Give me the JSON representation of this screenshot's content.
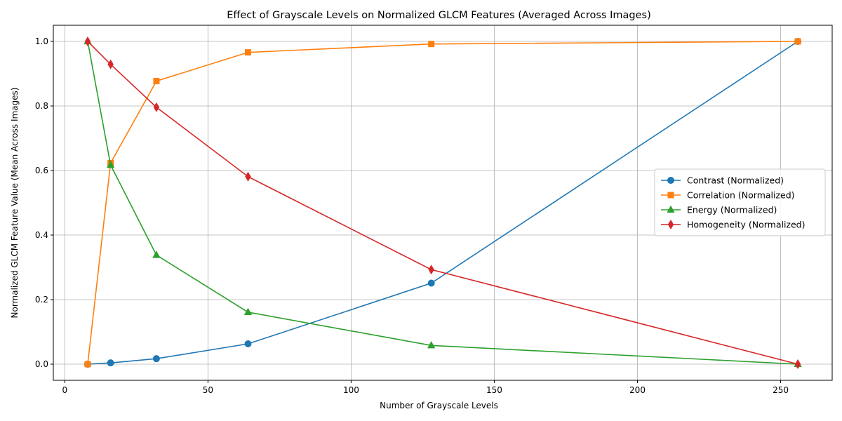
{
  "chart_data": {
    "type": "line",
    "title": "Effect of Grayscale Levels on Normalized GLCM Features (Averaged Across Images)",
    "xlabel": "Number of Grayscale Levels",
    "ylabel": "Normalized GLCM Feature Value (Mean Across Images)",
    "x": [
      8,
      16,
      32,
      64,
      128,
      256
    ],
    "xlim": [
      -4,
      268
    ],
    "ylim": [
      -0.05,
      1.05
    ],
    "xticks": [
      0,
      50,
      100,
      150,
      200,
      250
    ],
    "yticks": [
      0.0,
      0.2,
      0.4,
      0.6,
      0.8,
      1.0
    ],
    "xtick_labels": [
      "0",
      "50",
      "100",
      "150",
      "200",
      "250"
    ],
    "ytick_labels": [
      "0.0",
      "0.2",
      "0.4",
      "0.6",
      "0.8",
      "1.0"
    ],
    "grid": true,
    "legend_position": "center-right",
    "series": [
      {
        "name": "Contrast (Normalized)",
        "color": "#1f77b4",
        "marker": "circle",
        "values": [
          0.0,
          0.004,
          0.017,
          0.063,
          0.251,
          1.0
        ]
      },
      {
        "name": "Correlation (Normalized)",
        "color": "#ff7f0e",
        "marker": "square",
        "values": [
          0.0,
          0.623,
          0.877,
          0.966,
          0.992,
          1.0
        ]
      },
      {
        "name": "Energy (Normalized)",
        "color": "#2ca02c",
        "marker": "triangle",
        "values": [
          1.0,
          0.617,
          0.338,
          0.161,
          0.058,
          0.0
        ]
      },
      {
        "name": "Homogeneity (Normalized)",
        "color": "#d62728",
        "marker": "diamond",
        "values": [
          1.0,
          0.929,
          0.796,
          0.581,
          0.293,
          0.0
        ]
      }
    ]
  }
}
